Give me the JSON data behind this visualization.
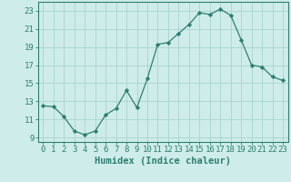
{
  "xlabel": "Humidex (Indice chaleur)",
  "ylabel": "",
  "x_values": [
    0,
    1,
    2,
    3,
    4,
    5,
    6,
    7,
    8,
    9,
    10,
    11,
    12,
    13,
    14,
    15,
    16,
    17,
    18,
    19,
    20,
    21,
    22,
    23
  ],
  "y_values": [
    12.5,
    12.4,
    11.3,
    9.7,
    9.3,
    9.7,
    11.5,
    12.2,
    14.2,
    12.3,
    15.5,
    19.3,
    19.5,
    20.5,
    21.5,
    22.8,
    22.6,
    23.2,
    22.5,
    19.8,
    17.0,
    16.8,
    15.7,
    15.3
  ],
  "line_color": "#2d7f70",
  "marker": "D",
  "marker_size": 2.2,
  "bg_color": "#ceecea",
  "grid_color": "#a8d4d0",
  "axis_color": "#2d7f70",
  "tick_color": "#2d7f70",
  "label_color": "#2d7f70",
  "ylim": [
    8.5,
    24.0
  ],
  "xlim": [
    -0.5,
    23.5
  ],
  "yticks": [
    9,
    11,
    13,
    15,
    17,
    19,
    21,
    23
  ],
  "xticks": [
    0,
    1,
    2,
    3,
    4,
    5,
    6,
    7,
    8,
    9,
    10,
    11,
    12,
    13,
    14,
    15,
    16,
    17,
    18,
    19,
    20,
    21,
    22,
    23
  ],
  "font_size": 6.5,
  "xlabel_font_size": 7.5
}
